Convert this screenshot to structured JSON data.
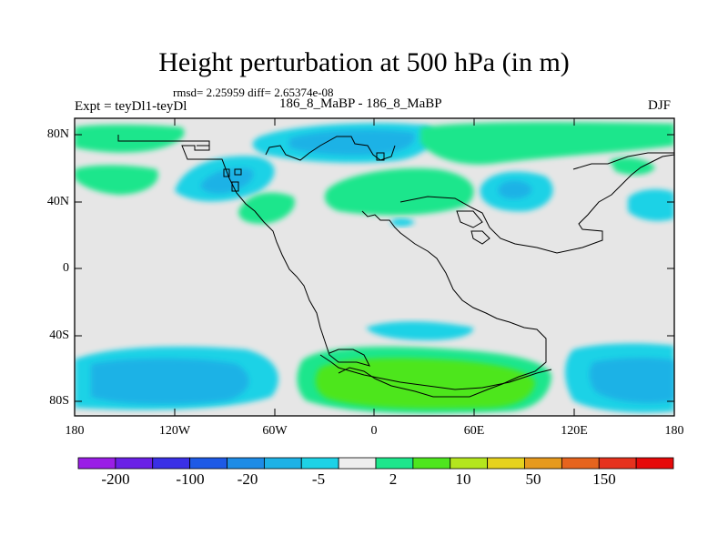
{
  "title": "Height perturbation at 500 hPa (in m)",
  "stats": "rmsd= 2.25959 diff= 2.65374e-08",
  "left_label": "Expt = teyDl1-teyDl",
  "center_label": "186_8_MaBP - 186_8_MaBP",
  "right_label": "DJF",
  "map": {
    "projection": "cylindrical-equidistant",
    "background_color": "#e6e6e6",
    "lat_ticks": [
      "80N",
      "40N",
      "0",
      "40S",
      "80S"
    ],
    "lon_ticks": [
      "180",
      "120W",
      "60W",
      "0",
      "60E",
      "120E",
      "180"
    ]
  },
  "colorbar": {
    "colors": [
      "#9a1ee6",
      "#6a20e6",
      "#3a30e6",
      "#1e5ae6",
      "#1e8ce6",
      "#1eb2e6",
      "#1ed2e6",
      "#eeeeee",
      "#1ee68c",
      "#4ee61e",
      "#b4e61e",
      "#e6d21e",
      "#e69a1e",
      "#e6641e",
      "#e6321e",
      "#e60a0a"
    ],
    "labels": [
      "-200",
      "-100",
      "-20",
      "-5",
      "2",
      "10",
      "50",
      "150"
    ]
  }
}
